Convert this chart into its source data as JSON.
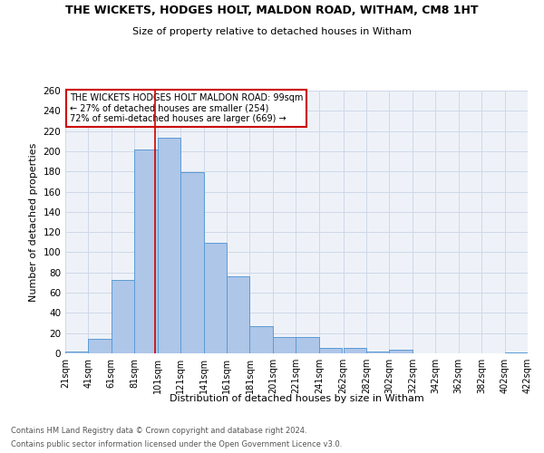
{
  "title": "THE WICKETS, HODGES HOLT, MALDON ROAD, WITHAM, CM8 1HT",
  "subtitle": "Size of property relative to detached houses in Witham",
  "xlabel": "Distribution of detached houses by size in Witham",
  "ylabel": "Number of detached properties",
  "bar_color": "#aec6e8",
  "bar_edge_color": "#5b9bd5",
  "grid_color": "#d0d8e8",
  "background_color": "#eef2f8",
  "bins": [
    21,
    41,
    61,
    81,
    101,
    121,
    141,
    161,
    181,
    201,
    221,
    241,
    262,
    282,
    302,
    322,
    342,
    362,
    382,
    402,
    422
  ],
  "counts": [
    2,
    14,
    73,
    202,
    213,
    179,
    109,
    76,
    27,
    16,
    16,
    5,
    5,
    2,
    4,
    0,
    0,
    0,
    0,
    1
  ],
  "property_size": 99,
  "vline_color": "#cc0000",
  "annotation_text": "THE WICKETS HODGES HOLT MALDON ROAD: 99sqm\n← 27% of detached houses are smaller (254)\n72% of semi-detached houses are larger (669) →",
  "annotation_box_edge": "#cc0000",
  "footnote1": "Contains HM Land Registry data © Crown copyright and database right 2024.",
  "footnote2": "Contains public sector information licensed under the Open Government Licence v3.0.",
  "ylim": [
    0,
    260
  ],
  "yticks": [
    0,
    20,
    40,
    60,
    80,
    100,
    120,
    140,
    160,
    180,
    200,
    220,
    240,
    260
  ]
}
